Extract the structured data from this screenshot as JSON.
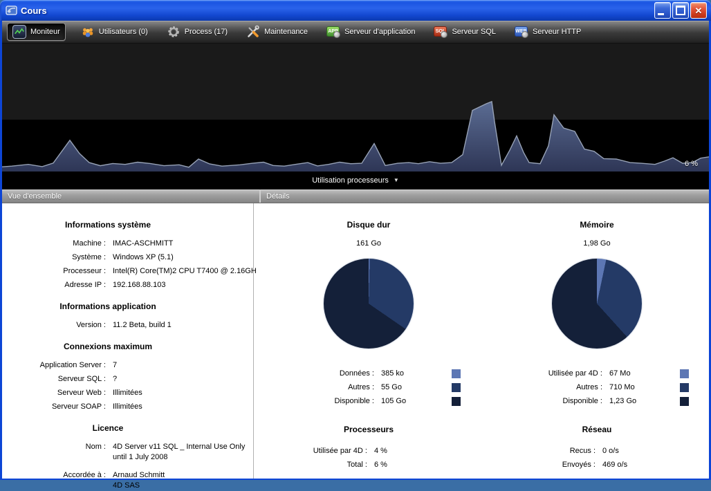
{
  "window": {
    "title": "Cours",
    "controls": {
      "minimize": "minimize",
      "maximize": "maximize",
      "close": "close"
    }
  },
  "toolbar": {
    "items": [
      {
        "label": "Moniteur",
        "icon": "monitor-chart-icon",
        "selected": true
      },
      {
        "label": "Utilisateurs (0)",
        "icon": "users-icon",
        "selected": false
      },
      {
        "label": "Process (17)",
        "icon": "gear-icon",
        "selected": false
      },
      {
        "label": "Maintenance",
        "icon": "tools-icon",
        "selected": false
      },
      {
        "label": "Serveur d'application",
        "icon": "app-server-icon",
        "badge": "APP",
        "selected": false
      },
      {
        "label": "Serveur SQL",
        "icon": "sql-server-icon",
        "badge": "SQL",
        "selected": false
      },
      {
        "label": "Serveur HTTP",
        "icon": "web-server-icon",
        "badge": "WEB",
        "selected": false
      }
    ]
  },
  "chart_data": [
    {
      "type": "area",
      "title": "Utilisation processeurs",
      "unit": "%",
      "current_label": "6 %",
      "ylim": [
        0,
        50
      ],
      "colors": {
        "fill_top": "#5b6c93",
        "fill_bottom": "#2e3656",
        "stroke": "#97a2b6",
        "bg_upper": "#1a1a1a",
        "bg_lower": "#000000"
      },
      "points": [
        [
          0,
          1.5
        ],
        [
          14,
          1.8
        ],
        [
          38,
          2.6
        ],
        [
          58,
          1.6
        ],
        [
          74,
          3.2
        ],
        [
          98,
          13.5
        ],
        [
          112,
          7.5
        ],
        [
          126,
          3.4
        ],
        [
          142,
          2.0
        ],
        [
          160,
          3.0
        ],
        [
          178,
          2.6
        ],
        [
          196,
          3.6
        ],
        [
          214,
          3.0
        ],
        [
          234,
          2.0
        ],
        [
          256,
          2.4
        ],
        [
          270,
          1.3
        ],
        [
          284,
          5.0
        ],
        [
          300,
          2.8
        ],
        [
          318,
          1.8
        ],
        [
          344,
          2.4
        ],
        [
          362,
          3.1
        ],
        [
          378,
          3.6
        ],
        [
          392,
          2.1
        ],
        [
          408,
          1.8
        ],
        [
          424,
          2.6
        ],
        [
          442,
          3.4
        ],
        [
          456,
          1.9
        ],
        [
          472,
          2.6
        ],
        [
          488,
          3.6
        ],
        [
          504,
          2.9
        ],
        [
          520,
          3.1
        ],
        [
          538,
          12.0
        ],
        [
          554,
          2.1
        ],
        [
          572,
          3.1
        ],
        [
          588,
          3.4
        ],
        [
          602,
          2.9
        ],
        [
          618,
          3.8
        ],
        [
          634,
          3.1
        ],
        [
          650,
          3.4
        ],
        [
          666,
          7.0
        ],
        [
          680,
          27.0
        ],
        [
          700,
          30.0
        ],
        [
          708,
          31.0
        ],
        [
          712,
          22.0
        ],
        [
          722,
          2.2
        ],
        [
          734,
          9.0
        ],
        [
          744,
          15.5
        ],
        [
          754,
          8.0
        ],
        [
          762,
          3.4
        ],
        [
          778,
          2.9
        ],
        [
          790,
          11.0
        ],
        [
          798,
          25.0
        ],
        [
          812,
          19.0
        ],
        [
          828,
          17.5
        ],
        [
          842,
          9.5
        ],
        [
          856,
          8.5
        ],
        [
          870,
          5.2
        ],
        [
          888,
          5.0
        ],
        [
          908,
          3.4
        ],
        [
          924,
          3.1
        ],
        [
          944,
          2.6
        ],
        [
          958,
          4.1
        ],
        [
          970,
          5.6
        ],
        [
          984,
          3.1
        ],
        [
          998,
          3.4
        ],
        [
          1010,
          5.4
        ],
        [
          1022,
          6.0
        ]
      ]
    },
    {
      "type": "pie",
      "title": "Disque dur",
      "total": "161 Go",
      "slices": [
        {
          "label": "Données :",
          "value": "385 ko",
          "pct": 0.4,
          "color": "#5d77b4"
        },
        {
          "label": "Autres :",
          "value": "55 Go",
          "pct": 34.2,
          "color": "#243a66"
        },
        {
          "label": "Disponible :",
          "value": "105 Go",
          "pct": 65.4,
          "color": "#142039"
        }
      ]
    },
    {
      "type": "pie",
      "title": "Mémoire",
      "total": "1,98 Go",
      "slices": [
        {
          "label": "Utilisée par 4D :",
          "value": "67 Mo",
          "pct": 3.3,
          "color": "#5d77b4"
        },
        {
          "label": "Autres :",
          "value": "710 Mo",
          "pct": 35.0,
          "color": "#243a66"
        },
        {
          "label": "Disponible :",
          "value": "1,23 Go",
          "pct": 61.7,
          "color": "#142039"
        }
      ]
    }
  ],
  "overview": {
    "header": "Vue d'ensemble",
    "sections": [
      {
        "heading": "Informations système",
        "rows": [
          {
            "label": "Machine :",
            "value": "IMAC-ASCHMITT"
          },
          {
            "label": "Système :",
            "value": "Windows XP (5.1)"
          },
          {
            "label": "Processeur :",
            "value": "Intel(R) Core(TM)2 CPU T7400 @ 2.16GH"
          },
          {
            "label": "Adresse IP :",
            "value": "192.168.88.103"
          }
        ]
      },
      {
        "heading": "Informations application",
        "rows": [
          {
            "label": "Version :",
            "value": "11.2 Beta, build 1"
          }
        ]
      },
      {
        "heading": "Connexions maximum",
        "rows": [
          {
            "label": "Application Server :",
            "value": "7"
          },
          {
            "label": "Serveur SQL :",
            "value": "?"
          },
          {
            "label": "Serveur Web :",
            "value": "Illimitées"
          },
          {
            "label": "Serveur SOAP :",
            "value": "Illimitées"
          }
        ]
      },
      {
        "heading": "Licence",
        "rows": [
          {
            "label": "Nom :",
            "line1": "4D Server v11 SQL _ Internal Use Only",
            "line2": "until 1 July 2008"
          },
          {
            "label": "Accordée à :",
            "line1": "Arnaud Schmitt",
            "line2": "4D SAS"
          }
        ]
      }
    ]
  },
  "details": {
    "header": "Détails",
    "processors": {
      "heading": "Processeurs",
      "rows": [
        {
          "label": "Utilisée par 4D :",
          "value": "4 %"
        },
        {
          "label": "Total :",
          "value": "6 %"
        }
      ]
    },
    "network": {
      "heading": "Réseau",
      "rows": [
        {
          "label": "Recus :",
          "value": "0 o/s"
        },
        {
          "label": "Envoyés :",
          "value": "469 o/s"
        }
      ]
    }
  }
}
